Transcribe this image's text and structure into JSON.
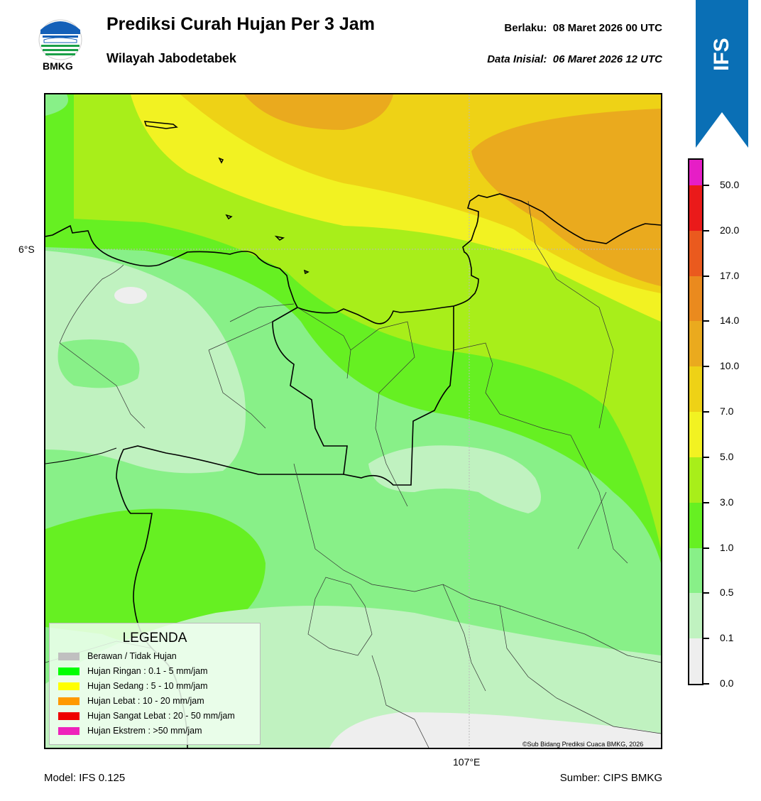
{
  "header": {
    "logo_text": "BMKG",
    "title": "Prediksi Curah Hujan Per 3 Jam",
    "region": "Wilayah Jabodetabek",
    "valid_time": "Berlaku:  08 Maret 2026 00 UTC",
    "initial_time": "Data Inisial:  06 Maret 2026 12 UTC"
  },
  "ribbon": {
    "label": "IFS",
    "color": "#0a6fb5"
  },
  "map": {
    "lat_label": "6°S",
    "lon_label": "107°E",
    "credit": "©Sub Bidang Prediksi Cuaca BMKG, 2026"
  },
  "legend": {
    "title": "LEGENDA",
    "items": [
      {
        "label": "Berawan / Tidak Hujan",
        "color": "#c0c0c0"
      },
      {
        "label": "Hujan Ringan : 0.1 - 5 mm/jam",
        "color": "#00ff00"
      },
      {
        "label": "Hujan Sedang : 5 - 10 mm/jam",
        "color": "#ffff00"
      },
      {
        "label": "Hujan Lebat : 10 - 20 mm/jam",
        "color": "#ff9900"
      },
      {
        "label": "Hujan Sangat Lebat : 20 - 50 mm/jam",
        "color": "#ee0000"
      },
      {
        "label": "Hujan Ekstrem : >50 mm/jam",
        "color": "#ee22bb"
      }
    ]
  },
  "colorbar": {
    "labels": [
      "0.0",
      "0.1",
      "0.5",
      "1.0",
      "3.0",
      "5.0",
      "7.0",
      "10.0",
      "14.0",
      "17.0",
      "20.0",
      "50.0"
    ],
    "colors": [
      "#eeeeee",
      "#c0f2c0",
      "#88f088",
      "#66f022",
      "#a8ee1a",
      "#f2f222",
      "#eed216",
      "#eaaa1e",
      "#ea8a1e",
      "#ea5a1e",
      "#ea1a1a",
      "#e61ec6"
    ]
  },
  "footer": {
    "model": "Model: IFS 0.125",
    "source": "Sumber: CIPS BMKG"
  }
}
